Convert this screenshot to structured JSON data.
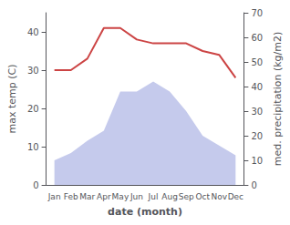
{
  "chart_data": {
    "type": "line",
    "categories": [
      "Jan",
      "Feb",
      "Mar",
      "Apr",
      "May",
      "Jun",
      "Jul",
      "Aug",
      "Sep",
      "Oct",
      "Nov",
      "Dec"
    ],
    "xlabel": "date (month)",
    "ylabel": "max temp (C)",
    "y2label": "med. precipitation (kg/m2)",
    "ylim": [
      0,
      45
    ],
    "yticks": [
      0,
      10,
      20,
      30,
      40
    ],
    "y2lim": [
      0,
      70
    ],
    "y2ticks": [
      0,
      10,
      20,
      30,
      40,
      50,
      60,
      70
    ],
    "grid": false,
    "series": [
      {
        "type": "area",
        "axis": "y2",
        "color": "#c5caec",
        "values": [
          10,
          13,
          18,
          22,
          38,
          38,
          42,
          38,
          30,
          20,
          16,
          12
        ]
      },
      {
        "type": "line",
        "color": "#cc4444",
        "values": [
          30,
          30,
          33,
          41,
          41,
          38,
          37,
          37,
          37,
          35,
          34,
          28
        ]
      }
    ]
  }
}
